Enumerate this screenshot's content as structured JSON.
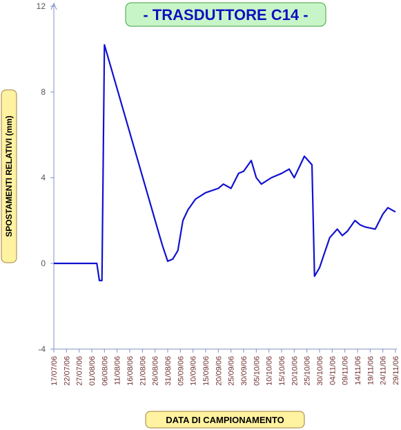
{
  "chart_data": {
    "type": "line",
    "title": "- TRASDUTTORE C14 -",
    "x_label": "DATA DI CAMPIONAMENTO",
    "y_label": "SPOSTAMENTI RELATIVI (mm)",
    "x": [
      "2006-07-17",
      "2006-08-03",
      "2006-08-04",
      "2006-08-05",
      "2006-08-06",
      "2006-08-28",
      "2006-08-29",
      "2006-08-31",
      "2006-09-02",
      "2006-09-04",
      "2006-09-06",
      "2006-09-08",
      "2006-09-11",
      "2006-09-15",
      "2006-09-20",
      "2006-09-22",
      "2006-09-25",
      "2006-09-28",
      "2006-09-30",
      "2006-10-03",
      "2006-10-05",
      "2006-10-07",
      "2006-10-11",
      "2006-10-15",
      "2006-10-18",
      "2006-10-20",
      "2006-10-22",
      "2006-10-24",
      "2006-10-27",
      "2006-10-28",
      "2006-10-30",
      "2006-11-01",
      "2006-11-03",
      "2006-11-06",
      "2006-11-08",
      "2006-11-10",
      "2006-11-13",
      "2006-11-15",
      "2006-11-17",
      "2006-11-21",
      "2006-11-24",
      "2006-11-26",
      "2006-11-29"
    ],
    "series": [
      {
        "color": "#1010d0",
        "values": [
          0,
          0,
          -0.8,
          -0.8,
          10.2,
          1.2,
          0.8,
          0.1,
          0.2,
          0.6,
          2.0,
          2.5,
          3.0,
          3.3,
          3.5,
          3.7,
          3.5,
          4.2,
          4.3,
          4.8,
          4.0,
          3.7,
          4.0,
          4.2,
          4.4,
          4.0,
          4.5,
          5.0,
          4.6,
          -0.6,
          -0.2,
          0.5,
          1.2,
          1.6,
          1.3,
          1.5,
          2.0,
          1.8,
          1.7,
          1.6,
          2.3,
          2.6,
          2.4
        ]
      }
    ],
    "xlim": [
      "2006-07-17",
      "2006-11-29"
    ],
    "xticks": [
      {
        "value": "2006-07-17",
        "label": "17/07/06"
      },
      {
        "value": "2006-07-22",
        "label": "22/07/06"
      },
      {
        "value": "2006-07-27",
        "label": "27/07/06"
      },
      {
        "value": "2006-08-01",
        "label": "01/08/06"
      },
      {
        "value": "2006-08-06",
        "label": "06/08/06"
      },
      {
        "value": "2006-08-11",
        "label": "11/08/06"
      },
      {
        "value": "2006-08-16",
        "label": "16/08/06"
      },
      {
        "value": "2006-08-21",
        "label": "21/08/06"
      },
      {
        "value": "2006-08-26",
        "label": "26/08/06"
      },
      {
        "value": "2006-08-31",
        "label": "31/08/06"
      },
      {
        "value": "2006-09-05",
        "label": "05/09/06"
      },
      {
        "value": "2006-09-10",
        "label": "10/09/06"
      },
      {
        "value": "2006-09-15",
        "label": "15/09/06"
      },
      {
        "value": "2006-09-20",
        "label": "20/09/06"
      },
      {
        "value": "2006-09-25",
        "label": "25/09/06"
      },
      {
        "value": "2006-09-30",
        "label": "30/09/06"
      },
      {
        "value": "2006-10-05",
        "label": "05/10/06"
      },
      {
        "value": "2006-10-10",
        "label": "10/10/06"
      },
      {
        "value": "2006-10-15",
        "label": "15/10/06"
      },
      {
        "value": "2006-10-20",
        "label": "20/10/06"
      },
      {
        "value": "2006-10-25",
        "label": "25/10/06"
      },
      {
        "value": "2006-10-30",
        "label": "30/10/06"
      },
      {
        "value": "2006-11-04",
        "label": "04/11/06"
      },
      {
        "value": "2006-11-09",
        "label": "09/11/06"
      },
      {
        "value": "2006-11-14",
        "label": "14/11/06"
      },
      {
        "value": "2006-11-19",
        "label": "19/11/06"
      },
      {
        "value": "2006-11-24",
        "label": "24/11/06"
      },
      {
        "value": "2006-11-29",
        "label": "29/11/06"
      }
    ],
    "ylim": [
      -4,
      12
    ],
    "yticks": [
      -4,
      0,
      4,
      8,
      12
    ],
    "grid": false
  }
}
